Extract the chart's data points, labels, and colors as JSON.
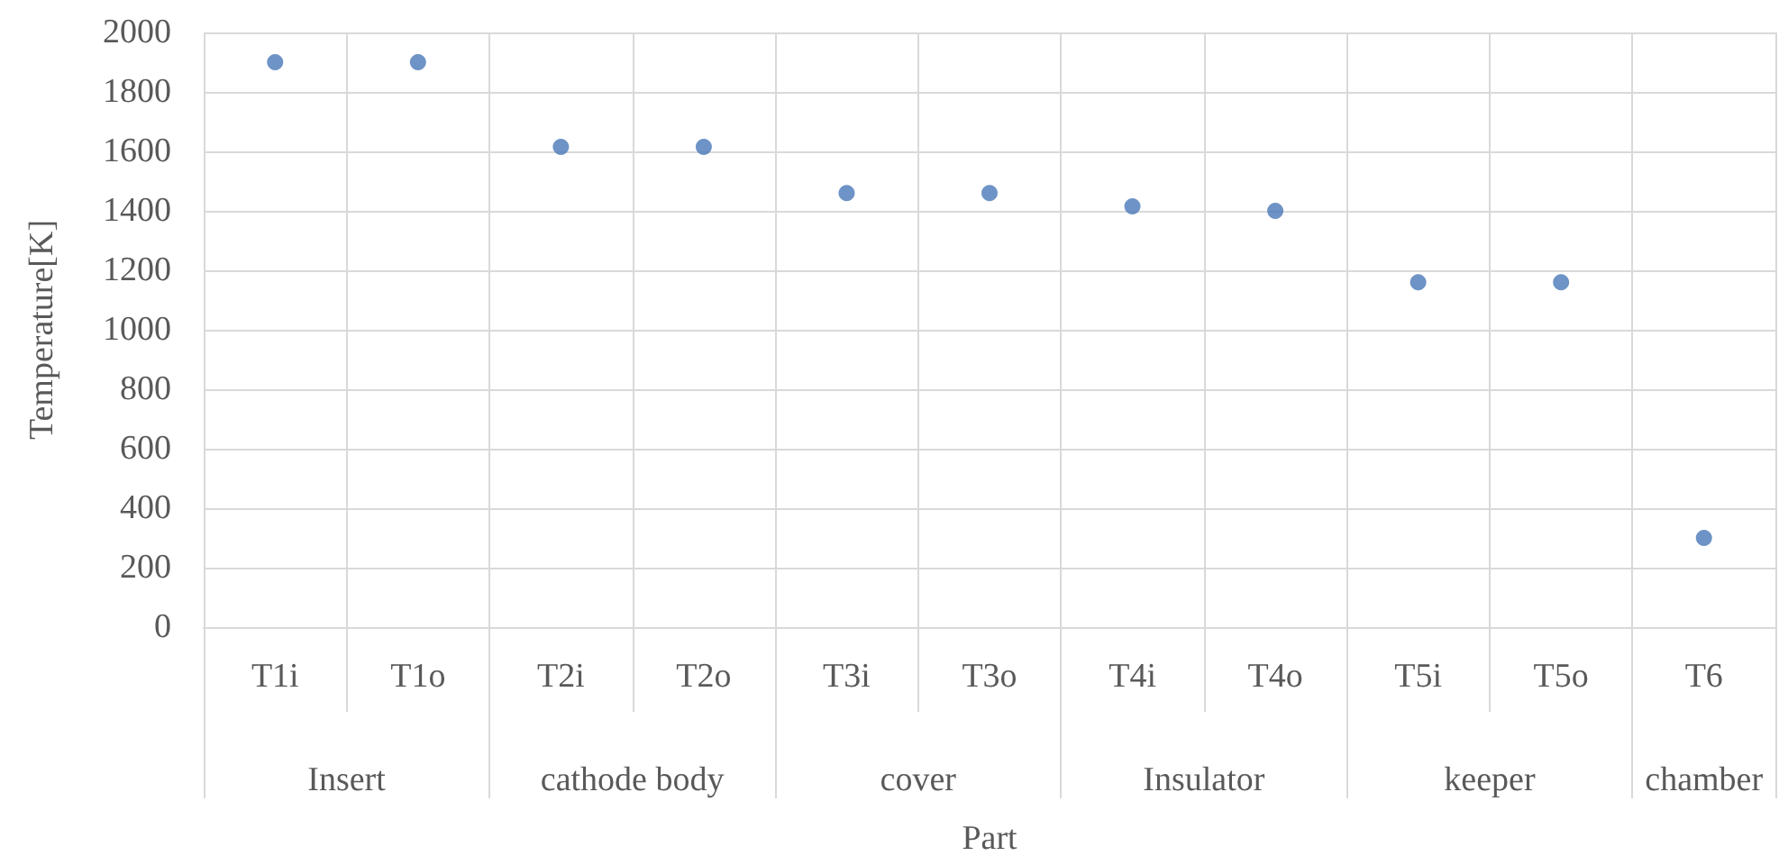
{
  "chart_data": {
    "type": "scatter",
    "xlabel": "Part",
    "ylabel": "Temperature[K]",
    "categories": [
      "T1i",
      "T1o",
      "T2i",
      "T2o",
      "T3i",
      "T3o",
      "T4i",
      "T4o",
      "T5i",
      "T5o",
      "T6"
    ],
    "values": [
      1900,
      1900,
      1615,
      1615,
      1460,
      1460,
      1415,
      1400,
      1160,
      1160,
      300
    ],
    "color": "#4a78b8",
    "marker": "circle",
    "grid": true,
    "ylim": [
      0,
      2000
    ],
    "yticks": [
      0,
      200,
      400,
      600,
      800,
      1000,
      1200,
      1400,
      1600,
      1800,
      2000
    ],
    "annotations": [
      "Insert",
      "cathode body",
      "cover",
      "Insulator",
      "keeper",
      "chamber"
    ]
  }
}
